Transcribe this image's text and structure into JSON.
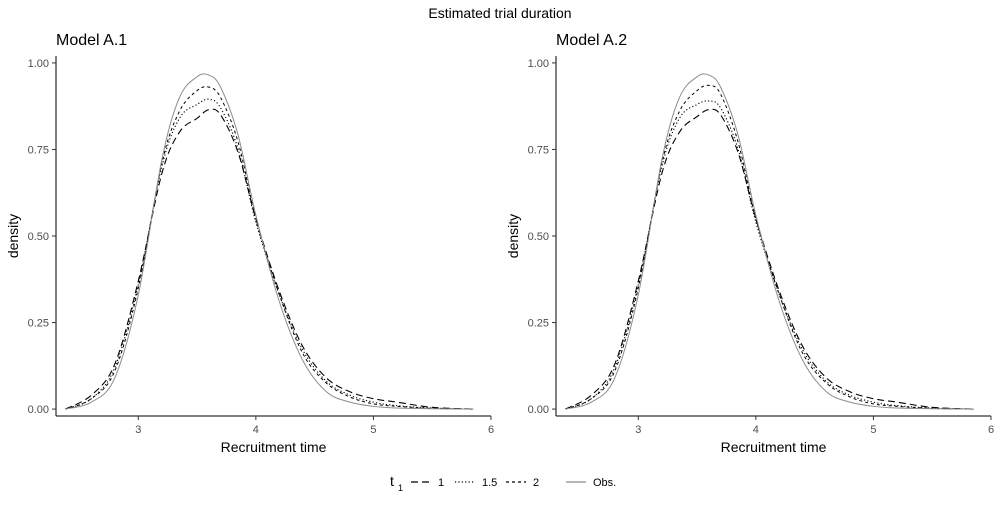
{
  "title": "Estimated trial duration",
  "legend": {
    "title_main": "t",
    "title_sub": "1",
    "position": "bottom",
    "entries": [
      "1",
      "1.5",
      "2",
      "Obs."
    ]
  },
  "chart_data": [
    {
      "type": "line",
      "title": "Model A.1",
      "xlabel": "Recruitment time",
      "ylabel": "density",
      "xlim": [
        2.3,
        6.0
      ],
      "ylim": [
        -0.02,
        1.02
      ],
      "xticks": [
        3,
        4,
        5,
        6
      ],
      "yticks": [
        0.0,
        0.25,
        0.5,
        0.75,
        1.0
      ],
      "ytick_labels": [
        "0.00",
        "0.25",
        "0.50",
        "0.75",
        "1.00"
      ],
      "grid": false,
      "series": [
        {
          "name": "1",
          "style": "dashed-long",
          "x": [
            2.38,
            2.6,
            2.8,
            3.0,
            3.2,
            3.35,
            3.5,
            3.6,
            3.7,
            3.85,
            4.0,
            4.2,
            4.4,
            4.6,
            4.8,
            5.0,
            5.2,
            5.5,
            5.85
          ],
          "y": [
            0.0,
            0.04,
            0.13,
            0.37,
            0.68,
            0.8,
            0.84,
            0.865,
            0.85,
            0.74,
            0.55,
            0.34,
            0.18,
            0.09,
            0.05,
            0.03,
            0.02,
            0.005,
            0.0
          ]
        },
        {
          "name": "1.5",
          "style": "dotted",
          "x": [
            2.38,
            2.6,
            2.8,
            3.0,
            3.2,
            3.35,
            3.5,
            3.6,
            3.7,
            3.85,
            4.0,
            4.2,
            4.4,
            4.6,
            4.8,
            5.0,
            5.2,
            5.5,
            5.85
          ],
          "y": [
            0.0,
            0.03,
            0.12,
            0.36,
            0.7,
            0.84,
            0.88,
            0.895,
            0.87,
            0.75,
            0.54,
            0.33,
            0.17,
            0.08,
            0.04,
            0.02,
            0.01,
            0.003,
            0.0
          ]
        },
        {
          "name": "2",
          "style": "dashed-short",
          "x": [
            2.38,
            2.6,
            2.8,
            3.0,
            3.2,
            3.35,
            3.5,
            3.6,
            3.7,
            3.85,
            4.0,
            4.2,
            4.4,
            4.6,
            4.8,
            5.0,
            5.2,
            5.5,
            5.85
          ],
          "y": [
            0.0,
            0.03,
            0.11,
            0.35,
            0.71,
            0.86,
            0.92,
            0.93,
            0.9,
            0.77,
            0.55,
            0.33,
            0.16,
            0.075,
            0.035,
            0.015,
            0.008,
            0.002,
            0.0
          ]
        },
        {
          "name": "Obs.",
          "style": "solid-grey",
          "x": [
            2.38,
            2.6,
            2.8,
            3.0,
            3.2,
            3.35,
            3.5,
            3.6,
            3.7,
            3.85,
            4.0,
            4.2,
            4.4,
            4.6,
            4.8,
            5.0,
            5.2,
            5.5,
            5.85
          ],
          "y": [
            0.0,
            0.02,
            0.09,
            0.33,
            0.72,
            0.9,
            0.96,
            0.965,
            0.93,
            0.79,
            0.56,
            0.31,
            0.14,
            0.05,
            0.02,
            0.008,
            0.003,
            0.001,
            0.0
          ]
        }
      ]
    },
    {
      "type": "line",
      "title": "Model A.2",
      "xlabel": "Recruitment time",
      "ylabel": "density",
      "xlim": [
        2.3,
        6.0
      ],
      "ylim": [
        -0.02,
        1.02
      ],
      "xticks": [
        3,
        4,
        5,
        6
      ],
      "yticks": [
        0.0,
        0.25,
        0.5,
        0.75,
        1.0
      ],
      "ytick_labels": [
        "0.00",
        "0.25",
        "0.50",
        "0.75",
        "1.00"
      ],
      "grid": false,
      "series": [
        {
          "name": "1",
          "style": "dashed-long",
          "x": [
            2.38,
            2.6,
            2.8,
            3.0,
            3.2,
            3.35,
            3.5,
            3.6,
            3.7,
            3.85,
            4.0,
            4.2,
            4.4,
            4.6,
            4.8,
            5.0,
            5.2,
            5.5,
            5.85
          ],
          "y": [
            0.0,
            0.04,
            0.13,
            0.37,
            0.68,
            0.8,
            0.845,
            0.865,
            0.85,
            0.74,
            0.55,
            0.34,
            0.18,
            0.09,
            0.05,
            0.03,
            0.02,
            0.005,
            0.0
          ]
        },
        {
          "name": "1.5",
          "style": "dotted",
          "x": [
            2.38,
            2.6,
            2.8,
            3.0,
            3.2,
            3.35,
            3.5,
            3.6,
            3.7,
            3.85,
            4.0,
            4.2,
            4.4,
            4.6,
            4.8,
            5.0,
            5.2,
            5.5,
            5.85
          ],
          "y": [
            0.0,
            0.03,
            0.12,
            0.36,
            0.7,
            0.84,
            0.88,
            0.89,
            0.87,
            0.75,
            0.54,
            0.33,
            0.17,
            0.08,
            0.04,
            0.02,
            0.01,
            0.003,
            0.0
          ]
        },
        {
          "name": "2",
          "style": "dashed-short",
          "x": [
            2.38,
            2.6,
            2.8,
            3.0,
            3.2,
            3.35,
            3.5,
            3.6,
            3.7,
            3.85,
            4.0,
            4.2,
            4.4,
            4.6,
            4.8,
            5.0,
            5.2,
            5.5,
            5.85
          ],
          "y": [
            0.0,
            0.03,
            0.11,
            0.35,
            0.71,
            0.86,
            0.92,
            0.935,
            0.91,
            0.77,
            0.55,
            0.33,
            0.16,
            0.075,
            0.035,
            0.015,
            0.008,
            0.002,
            0.0
          ]
        },
        {
          "name": "Obs.",
          "style": "solid-grey",
          "x": [
            2.38,
            2.6,
            2.8,
            3.0,
            3.2,
            3.35,
            3.5,
            3.6,
            3.7,
            3.85,
            4.0,
            4.2,
            4.4,
            4.6,
            4.8,
            5.0,
            5.2,
            5.5,
            5.85
          ],
          "y": [
            0.0,
            0.02,
            0.09,
            0.33,
            0.72,
            0.9,
            0.96,
            0.965,
            0.93,
            0.79,
            0.56,
            0.31,
            0.14,
            0.05,
            0.02,
            0.008,
            0.003,
            0.001,
            0.0
          ]
        }
      ]
    }
  ]
}
